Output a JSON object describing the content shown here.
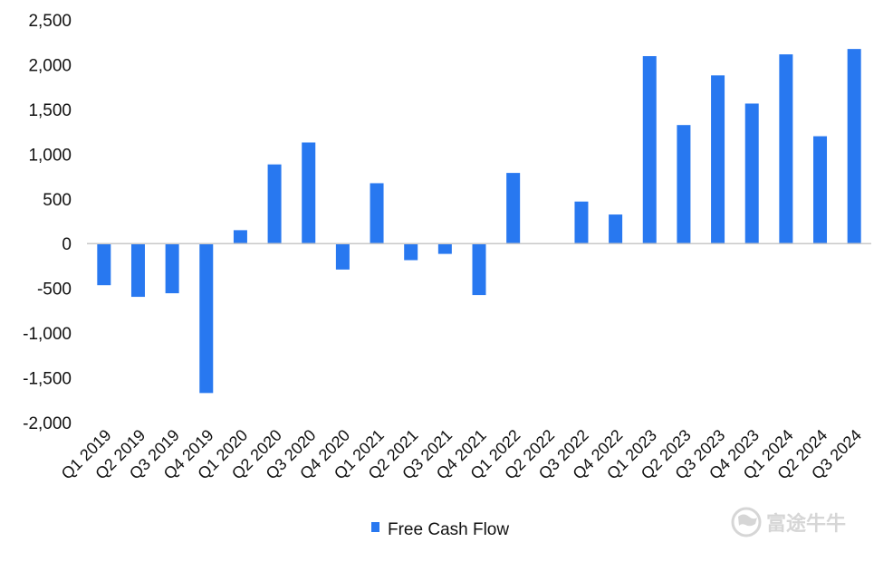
{
  "chart_data": {
    "type": "bar",
    "title": "",
    "xlabel": "",
    "ylabel": "",
    "ylim": [
      -2000,
      2500
    ],
    "yticks": [
      -2000,
      -1500,
      -1000,
      -500,
      0,
      500,
      1000,
      1500,
      2000,
      2500
    ],
    "ytick_labels": [
      "-2,000",
      "-1,500",
      "-1,000",
      "-500",
      "0",
      "500",
      "1,000",
      "1,500",
      "2,000",
      "2,500"
    ],
    "categories": [
      "Q1 2019",
      "Q2 2019",
      "Q3 2019",
      "Q4 2019",
      "Q1 2020",
      "Q2 2020",
      "Q3 2020",
      "Q4 2020",
      "Q1 2021",
      "Q2 2021",
      "Q3 2021",
      "Q4 2021",
      "Q1 2022",
      "Q2 2022",
      "Q3 2022",
      "Q4 2022",
      "Q1 2023",
      "Q2 2023",
      "Q3 2023",
      "Q4 2023",
      "Q1 2024",
      "Q2 2024",
      "Q3 2024"
    ],
    "series": [
      {
        "name": "Free Cash Flow",
        "color": "#2878f0",
        "values": [
          -465,
          -595,
          -555,
          -1670,
          150,
          885,
          1130,
          -290,
          675,
          -185,
          -115,
          -575,
          790,
          0,
          470,
          325,
          2095,
          1325,
          1880,
          1565,
          2115,
          1200,
          2175
        ]
      }
    ],
    "grid": false,
    "zero_line_color": "#c8c8c8",
    "legend_position": "bottom-center"
  },
  "watermark": {
    "icon": "futu-bull-logo",
    "text": "富途牛牛"
  }
}
